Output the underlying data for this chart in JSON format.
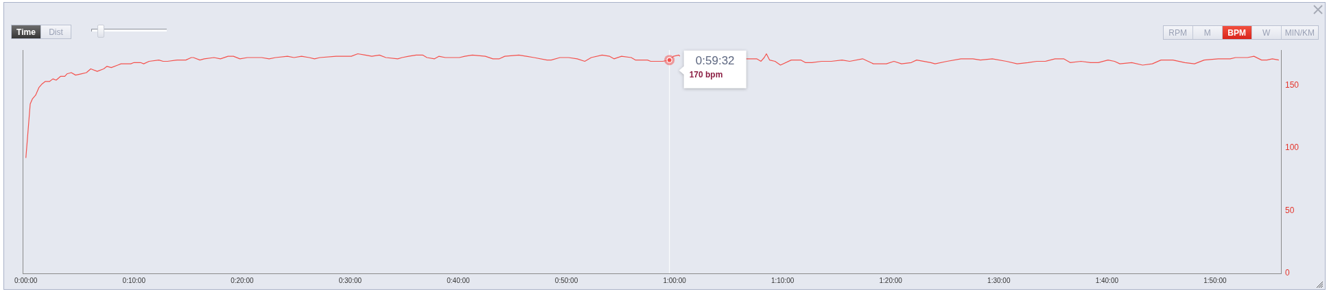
{
  "chart_data": {
    "type": "line",
    "x": [
      0,
      0.4,
      0.6,
      0.9,
      1.2,
      1.5,
      1.8,
      2.2,
      2.5,
      2.8,
      3.2,
      3.6,
      3.8,
      4.2,
      4.6,
      5.1,
      5.6,
      6.0,
      6.6,
      7.2,
      7.5,
      7.9,
      8.5,
      8.8,
      9.7,
      10.0,
      10.6,
      10.9,
      11.4,
      12.3,
      12.7,
      13.1,
      14.0,
      14.8,
      15.3,
      15.5,
      16.1,
      16.5,
      17.4,
      18.0,
      18.7,
      19.2,
      19.8,
      20.5,
      21.1,
      21.8,
      22.5,
      23.1,
      24.2,
      24.8,
      25.5,
      26.2,
      26.7,
      27.2,
      28.7,
      30.1,
      30.7,
      31.4,
      32.0,
      32.7,
      33.3,
      34.4,
      34.8,
      35.4,
      36.1,
      36.7,
      37.1,
      37.8,
      38.2,
      38.8,
      40.1,
      40.6,
      41.3,
      42.5,
      43.2,
      43.8,
      44.3,
      45.6,
      46.3,
      47.0,
      48.2,
      48.6,
      49.4,
      50.2,
      51.0,
      51.7,
      52.3,
      53.3,
      54.0,
      54.4,
      55.1,
      56.0,
      56.4,
      57.5,
      57.8,
      58.9,
      59.53,
      59.9,
      60.4,
      60.5,
      63.7,
      66.6,
      67.6,
      68.0,
      68.3,
      68.5,
      68.8,
      69.3,
      69.8,
      70.8,
      71.7,
      72.1,
      72.7,
      73.6,
      74.5,
      75.5,
      76.2,
      77.4,
      78.4,
      79.6,
      80.3,
      81.0,
      81.9,
      82.4,
      83.7,
      84.1,
      85.2,
      86.5,
      87.6,
      88.3,
      89.4,
      90.7,
      91.7,
      92.7,
      93.5,
      94.3,
      95.2,
      96.0,
      96.6,
      97.6,
      98.5,
      99.2,
      100.1,
      100.7,
      101.2,
      102.3,
      103.3,
      104.2,
      105.0,
      106.1,
      107.2,
      108.1,
      109.0,
      110.3,
      111.4,
      111.9,
      113.0,
      113.6,
      114.3,
      114.8,
      115.3,
      115.9
    ],
    "series": [
      {
        "color": "#f4514c",
        "values": [
          92,
          135,
          139,
          142,
          148,
          151,
          153,
          153,
          155,
          154,
          157,
          157,
          159,
          160,
          158,
          159,
          160,
          163,
          161,
          163,
          165,
          164,
          166,
          167,
          167,
          168,
          168,
          167,
          169,
          170,
          169,
          169,
          170,
          170,
          172,
          172,
          170,
          171,
          172,
          171,
          173,
          173,
          171,
          172,
          172,
          172,
          171,
          172,
          173,
          172,
          173,
          172,
          171,
          172,
          173,
          173,
          175,
          174,
          173,
          174,
          172,
          171,
          172,
          173,
          174,
          174,
          172,
          171,
          173,
          172,
          172,
          173,
          174,
          173,
          171,
          171,
          173,
          174,
          173,
          172,
          170,
          170,
          172,
          172,
          171,
          169,
          172,
          174,
          173,
          171,
          173,
          172,
          170,
          170,
          169,
          169,
          170,
          173,
          174,
          173,
          null,
          171,
          171,
          169,
          172,
          175,
          170,
          169,
          166,
          170,
          170,
          168,
          168,
          169,
          169,
          170,
          169,
          171,
          167,
          167,
          169,
          167,
          168,
          170,
          168,
          167,
          169,
          171,
          171,
          170,
          171,
          169,
          167,
          168,
          169,
          169,
          171,
          171,
          168,
          169,
          168,
          168,
          170,
          169,
          167,
          168,
          166,
          167,
          170,
          170,
          168,
          167,
          170,
          171,
          171,
          172,
          172,
          173,
          170,
          170,
          171,
          170
        ]
      }
    ],
    "xlim": [
      -0.3,
      116.1
    ],
    "xticks": [
      {
        "value": 0,
        "label": "0:00:00"
      },
      {
        "value": 10,
        "label": "0:10:00"
      },
      {
        "value": 20,
        "label": "0:20:00"
      },
      {
        "value": 30,
        "label": "0:30:00"
      },
      {
        "value": 40,
        "label": "0:40:00"
      },
      {
        "value": 50,
        "label": "0:50:00"
      },
      {
        "value": 60,
        "label": "1:00:00"
      },
      {
        "value": 70,
        "label": "1:10:00"
      },
      {
        "value": 80,
        "label": "1:20:00"
      },
      {
        "value": 90,
        "label": "1:30:00"
      },
      {
        "value": 100,
        "label": "1:40:00"
      },
      {
        "value": 110,
        "label": "1:50:00"
      }
    ],
    "ylim": [
      0,
      178
    ],
    "yticks": [
      0,
      50,
      100,
      150
    ],
    "ref_lines": [
      {
        "axis": "x",
        "value": 59.53,
        "color": "#ffffff"
      }
    ],
    "annotations": [
      "Time",
      "Dist",
      "RPM",
      "M",
      "BPM",
      "W",
      "MIN/KM",
      {
        "text": "0:59:32",
        "x": 59.53,
        "y": 170
      },
      {
        "text": "170 bpm",
        "x": 59.53,
        "y": 170
      }
    ]
  }
}
